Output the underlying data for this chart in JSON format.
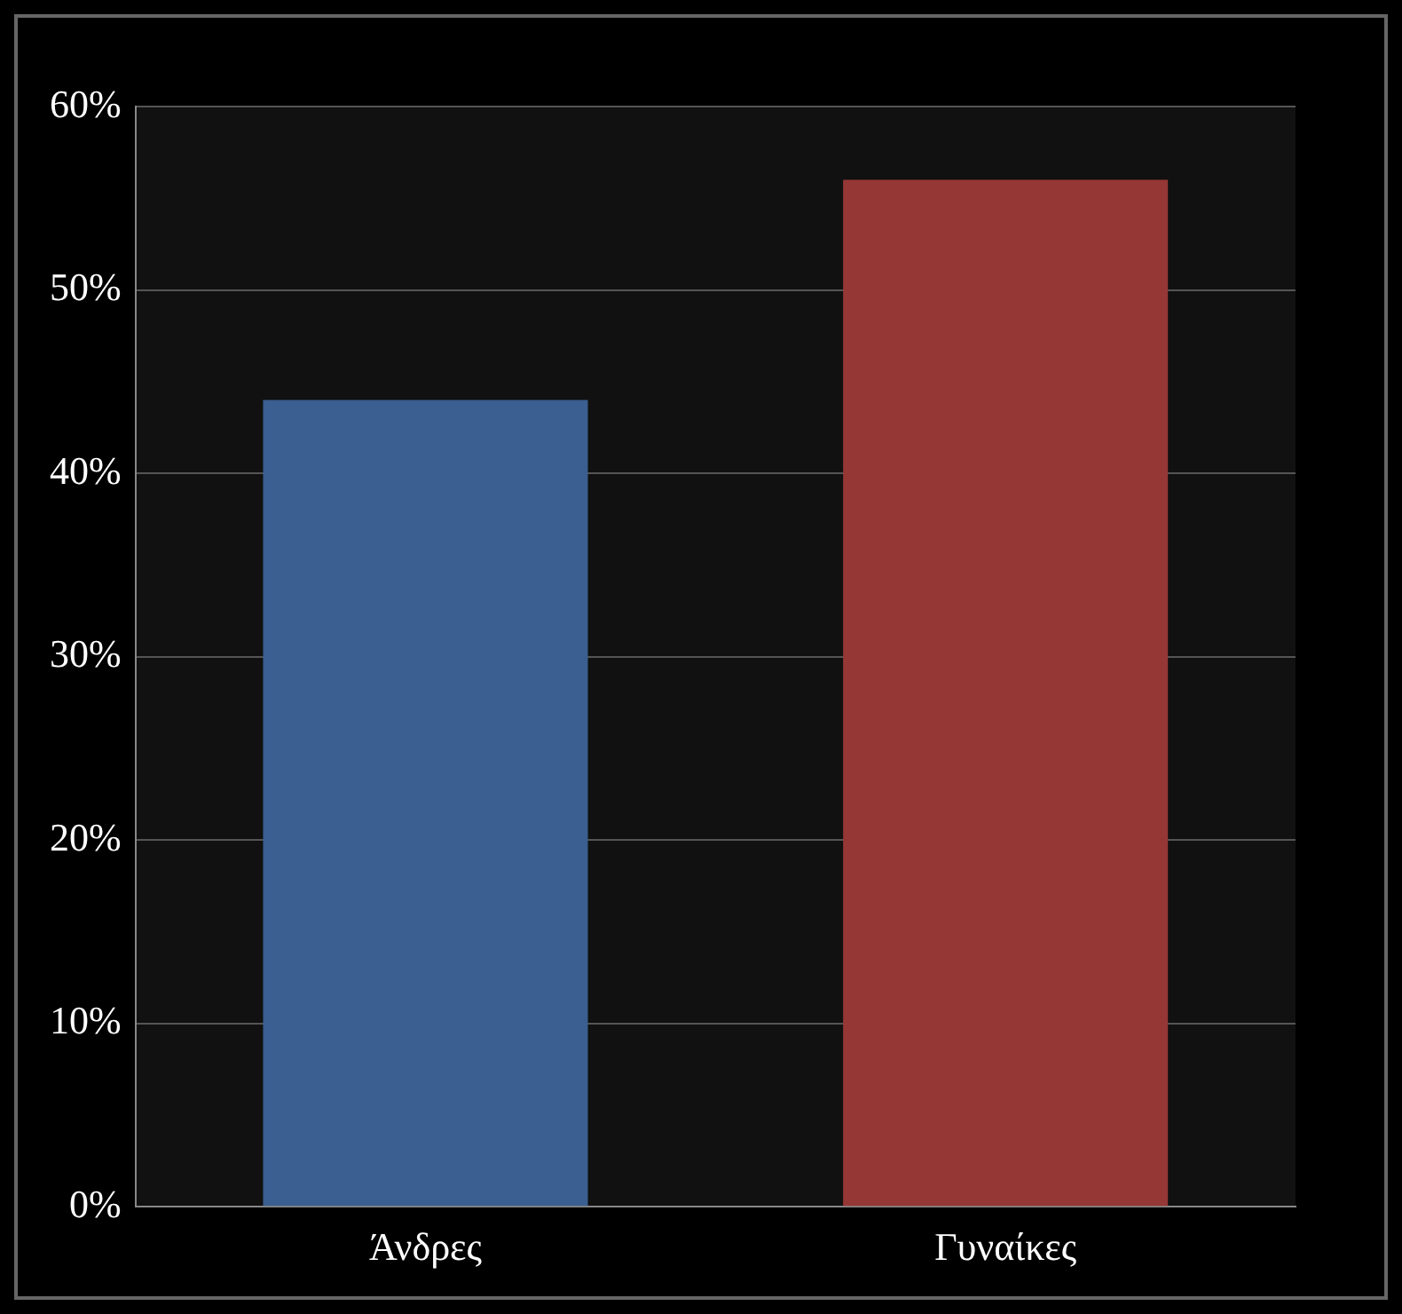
{
  "chart_data": {
    "type": "bar",
    "categories": [
      "Άνδρες",
      "Γυναίκες"
    ],
    "values": [
      44,
      56
    ],
    "colors": [
      "#3a5f90",
      "#953735"
    ],
    "ylim": [
      0,
      60
    ],
    "yticks": [
      {
        "value": 0,
        "label": "0%"
      },
      {
        "value": 10,
        "label": "10%"
      },
      {
        "value": 20,
        "label": "20%"
      },
      {
        "value": 30,
        "label": "30%"
      },
      {
        "value": 40,
        "label": "40%"
      },
      {
        "value": 50,
        "label": "50%"
      },
      {
        "value": 60,
        "label": "60%"
      }
    ],
    "grid": "y",
    "legend": false
  }
}
